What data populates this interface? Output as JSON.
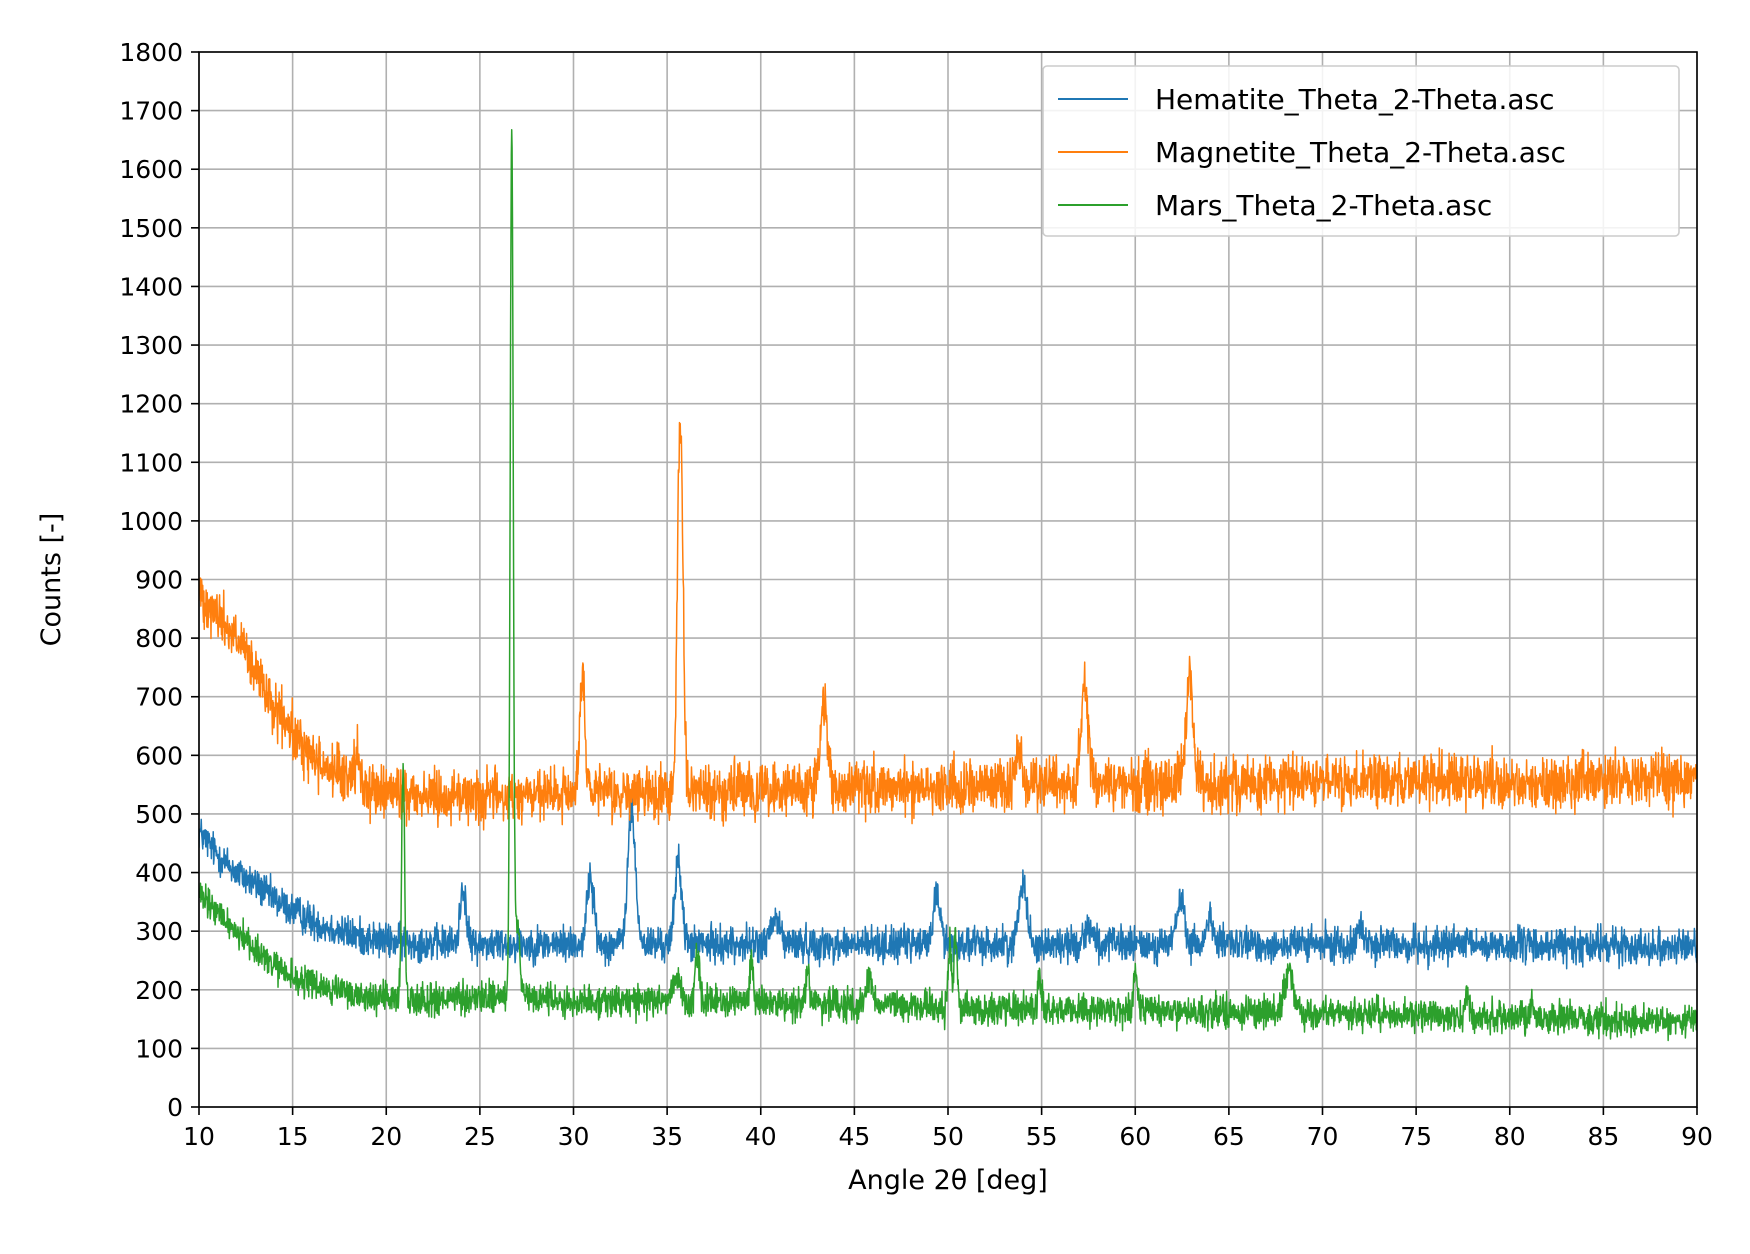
{
  "chart_data": {
    "type": "line",
    "xlabel": "Angle 2θ [deg]",
    "ylabel": "Counts [-]",
    "xlim": [
      10,
      90
    ],
    "ylim": [
      0,
      1800
    ],
    "x_ticks": [
      10,
      15,
      20,
      25,
      30,
      35,
      40,
      45,
      50,
      55,
      60,
      65,
      70,
      75,
      80,
      85,
      90
    ],
    "y_ticks": [
      0,
      100,
      200,
      300,
      400,
      500,
      600,
      700,
      800,
      900,
      1000,
      1100,
      1200,
      1300,
      1400,
      1500,
      1600,
      1700,
      1800
    ],
    "grid": true,
    "legend_position": "top-right",
    "series": [
      {
        "name": "Hematite_Theta_2-Theta.asc",
        "color": "#1f77b4",
        "noise": 50,
        "points": [
          [
            10,
            470
          ],
          [
            11,
            430
          ],
          [
            12,
            400
          ],
          [
            13,
            380
          ],
          [
            14,
            355
          ],
          [
            15,
            335
          ],
          [
            16,
            318
          ],
          [
            17,
            305
          ],
          [
            18,
            295
          ],
          [
            19,
            288
          ],
          [
            20,
            283
          ],
          [
            22,
            280
          ],
          [
            25,
            278
          ],
          [
            30,
            278
          ],
          [
            40,
            278
          ],
          [
            50,
            277
          ],
          [
            60,
            277
          ],
          [
            70,
            277
          ],
          [
            80,
            276
          ],
          [
            90,
            274
          ]
        ],
        "peaks": [
          [
            24.1,
            100,
            0.15
          ],
          [
            30.9,
            115,
            0.18
          ],
          [
            33.1,
            230,
            0.2
          ],
          [
            35.6,
            145,
            0.18
          ],
          [
            40.8,
            40,
            0.25
          ],
          [
            49.4,
            85,
            0.2
          ],
          [
            54.0,
            115,
            0.2
          ],
          [
            57.5,
            35,
            0.2
          ],
          [
            62.4,
            75,
            0.2
          ],
          [
            64.0,
            45,
            0.2
          ],
          [
            72.0,
            25,
            0.25
          ]
        ]
      },
      {
        "name": "Magnetite_Theta_2-Theta.asc",
        "color": "#ff7f0e",
        "noise": 75,
        "points": [
          [
            10,
            880
          ],
          [
            11,
            840
          ],
          [
            12,
            800
          ],
          [
            13,
            740
          ],
          [
            14,
            680
          ],
          [
            15,
            635
          ],
          [
            16,
            600
          ],
          [
            17,
            575
          ],
          [
            18,
            557
          ],
          [
            19,
            545
          ],
          [
            20,
            537
          ],
          [
            22,
            532
          ],
          [
            25,
            530
          ],
          [
            30,
            532
          ],
          [
            40,
            540
          ],
          [
            50,
            548
          ],
          [
            60,
            552
          ],
          [
            70,
            557
          ],
          [
            80,
            552
          ],
          [
            90,
            560
          ]
        ],
        "peaks": [
          [
            18.4,
            40,
            0.2
          ],
          [
            30.3,
            40,
            0.15
          ],
          [
            30.5,
            200,
            0.12
          ],
          [
            35.7,
            640,
            0.15
          ],
          [
            43.4,
            145,
            0.18
          ],
          [
            53.8,
            45,
            0.2
          ],
          [
            57.3,
            165,
            0.2
          ],
          [
            62.9,
            175,
            0.2
          ]
        ]
      },
      {
        "name": "Mars_Theta_2-Theta.asc",
        "color": "#2ca02c",
        "noise": 45,
        "points": [
          [
            10,
            360
          ],
          [
            11,
            330
          ],
          [
            12,
            300
          ],
          [
            13,
            270
          ],
          [
            14,
            240
          ],
          [
            15,
            220
          ],
          [
            16,
            210
          ],
          [
            17,
            200
          ],
          [
            18,
            193
          ],
          [
            19,
            188
          ],
          [
            20,
            185
          ],
          [
            22,
            183
          ],
          [
            25,
            185
          ],
          [
            26,
            190
          ],
          [
            28,
            185
          ],
          [
            30,
            180
          ],
          [
            35,
            182
          ],
          [
            40,
            178
          ],
          [
            45,
            175
          ],
          [
            50,
            170
          ],
          [
            55,
            168
          ],
          [
            60,
            165
          ],
          [
            65,
            162
          ],
          [
            70,
            160
          ],
          [
            80,
            155
          ],
          [
            90,
            145
          ]
        ],
        "peaks": [
          [
            20.9,
            400,
            0.08
          ],
          [
            26.7,
            1480,
            0.08
          ],
          [
            27.0,
            140,
            0.12
          ],
          [
            35.5,
            40,
            0.2
          ],
          [
            36.6,
            90,
            0.1
          ],
          [
            39.5,
            65,
            0.1
          ],
          [
            42.5,
            55,
            0.1
          ],
          [
            45.8,
            40,
            0.2
          ],
          [
            50.1,
            110,
            0.08
          ],
          [
            50.4,
            130,
            0.08
          ],
          [
            54.9,
            50,
            0.1
          ],
          [
            60.0,
            60,
            0.1
          ],
          [
            68.2,
            70,
            0.25
          ],
          [
            77.7,
            35,
            0.1
          ],
          [
            81.2,
            30,
            0.1
          ]
        ]
      }
    ]
  }
}
